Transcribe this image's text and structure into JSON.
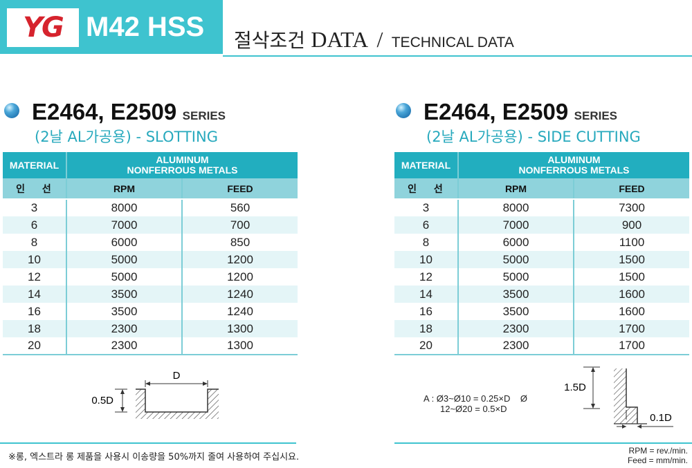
{
  "header": {
    "logo_text": "YG",
    "title": "M42 HSS",
    "subtitle_ko": "절삭조건",
    "subtitle_data": "DATA",
    "subtitle_slash": "/",
    "subtitle_en": "TECHNICAL DATA",
    "accent_color": "#3ec3cf",
    "logo_color": "#d6232d"
  },
  "left": {
    "series": "E2464, E2509",
    "series_suffix": "SERIES",
    "subtitle": "(2날 AL가공용) - SLOTTING",
    "columns": {
      "material": "MATERIAL",
      "material_ko": "인 선",
      "group_line1": "ALUMINUM",
      "group_line2": "NONFERROUS METALS",
      "rpm": "RPM",
      "feed": "FEED"
    },
    "rows": [
      [
        "3",
        "8000",
        "560"
      ],
      [
        "6",
        "7000",
        "700"
      ],
      [
        "8",
        "6000",
        "850"
      ],
      [
        "10",
        "5000",
        "1200"
      ],
      [
        "12",
        "5000",
        "1200"
      ],
      [
        "14",
        "3500",
        "1240"
      ],
      [
        "16",
        "3500",
        "1240"
      ],
      [
        "18",
        "2300",
        "1300"
      ],
      [
        "20",
        "2300",
        "1300"
      ]
    ],
    "diagram": {
      "width_label": "D",
      "depth_label": "0.5D"
    }
  },
  "right": {
    "series": "E2464, E2509",
    "series_suffix": "SERIES",
    "subtitle": "(2날 AL가공용) - SIDE CUTTING",
    "columns": {
      "material": "MATERIAL",
      "material_ko": "인 선",
      "group_line1": "ALUMINUM",
      "group_line2": "NONFERROUS METALS",
      "rpm": "RPM",
      "feed": "FEED"
    },
    "rows": [
      [
        "3",
        "8000",
        "7300"
      ],
      [
        "6",
        "7000",
        "900"
      ],
      [
        "8",
        "6000",
        "1100"
      ],
      [
        "10",
        "5000",
        "1500"
      ],
      [
        "12",
        "5000",
        "1500"
      ],
      [
        "14",
        "3500",
        "1600"
      ],
      [
        "16",
        "3500",
        "1600"
      ],
      [
        "18",
        "2300",
        "1700"
      ],
      [
        "20",
        "2300",
        "1700"
      ]
    ],
    "formula_line1": "A : Ø3~Ø10 = 0.25×D",
    "formula_symbol": "Ø",
    "formula_line2": "12~Ø20 = 0.5×D",
    "diagram": {
      "height_label": "1.5D",
      "radial_label": "0.1D"
    }
  },
  "footer": {
    "note": "※롱, 엑스트라 롱 제품을 사용시 이송량을 50%까지 줄여 사용하여 주십시요.",
    "unit_rpm": "RPM = rev./min.",
    "unit_feed": "Feed = mm/min."
  }
}
